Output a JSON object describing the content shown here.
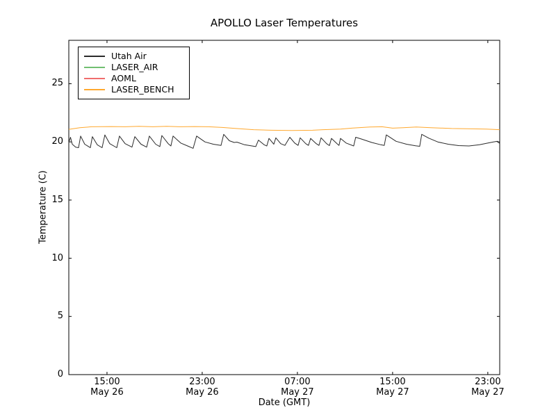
{
  "window": {
    "background": "#ffffff"
  },
  "chart_data": {
    "type": "line",
    "title": "APOLLO Laser Temperatures",
    "xlabel": "Date (GMT)",
    "ylabel": "Temperature (C)",
    "x_unit": "hours since May 26 00:00 GMT",
    "xlim": [
      11.79,
      48.0
    ],
    "ylim": [
      0,
      28.73
    ],
    "grid": false,
    "legend_position": "upper left",
    "x_ticks": [
      {
        "value": 15,
        "label": "15:00",
        "sublabel": "May 26"
      },
      {
        "value": 23,
        "label": "23:00",
        "sublabel": "May 26"
      },
      {
        "value": 31,
        "label": "07:00",
        "sublabel": "May 27"
      },
      {
        "value": 39,
        "label": "15:00",
        "sublabel": "May 27"
      },
      {
        "value": 47,
        "label": "23:00",
        "sublabel": "May 27"
      }
    ],
    "y_ticks": [
      {
        "value": 0,
        "label": "0"
      },
      {
        "value": 5,
        "label": "5"
      },
      {
        "value": 10,
        "label": "10"
      },
      {
        "value": 15,
        "label": "15"
      },
      {
        "value": 20,
        "label": "20"
      },
      {
        "value": 25,
        "label": "25"
      }
    ],
    "series": [
      {
        "name": "Utah Air",
        "color": "#2a2a2a",
        "x": [
          11.79,
          11.93,
          12.08,
          12.37,
          12.61,
          12.78,
          13.13,
          13.6,
          13.77,
          14.18,
          14.59,
          14.82,
          15.23,
          15.82,
          16.05,
          16.52,
          17.1,
          17.34,
          17.86,
          18.33,
          18.56,
          19.09,
          19.44,
          19.61,
          20.14,
          20.37,
          20.55,
          21.19,
          21.77,
          22.24,
          22.53,
          23.23,
          23.93,
          24.58,
          24.81,
          25.28,
          25.69,
          25.92,
          26.56,
          27.5,
          27.73,
          28.2,
          28.43,
          28.61,
          29.02,
          29.19,
          29.6,
          29.95,
          30.36,
          30.77,
          31.06,
          31.23,
          31.7,
          31.93,
          32.11,
          32.58,
          32.81,
          32.99,
          33.45,
          33.69,
          33.86,
          34.33,
          34.5,
          34.62,
          35.09,
          35.73,
          35.9,
          36.37,
          37.25,
          38.01,
          38.3,
          38.47,
          39.29,
          40.17,
          40.93,
          41.28,
          41.45,
          42.04,
          42.79,
          43.67,
          44.55,
          45.42,
          46.3,
          46.88,
          47.47,
          47.82,
          48.0
        ],
        "y": [
          19.95,
          20.4,
          19.8,
          19.55,
          19.5,
          20.5,
          19.8,
          19.5,
          20.45,
          19.75,
          19.5,
          20.6,
          19.85,
          19.5,
          20.5,
          19.85,
          19.55,
          20.45,
          19.8,
          19.55,
          20.5,
          19.8,
          19.6,
          20.55,
          19.85,
          19.65,
          20.5,
          19.9,
          19.65,
          19.45,
          20.5,
          20.0,
          19.8,
          19.7,
          20.65,
          20.1,
          19.95,
          19.98,
          19.75,
          19.6,
          20.15,
          19.75,
          19.65,
          20.3,
          19.8,
          20.35,
          19.85,
          19.7,
          20.4,
          19.9,
          19.7,
          20.35,
          19.85,
          19.7,
          20.3,
          19.85,
          19.7,
          20.35,
          19.85,
          19.68,
          20.3,
          19.85,
          19.7,
          20.3,
          19.9,
          19.65,
          20.4,
          20.25,
          19.95,
          19.75,
          19.7,
          20.6,
          20.05,
          19.8,
          19.67,
          19.62,
          20.65,
          20.32,
          20.0,
          19.8,
          19.68,
          19.65,
          19.75,
          19.88,
          20.0,
          20.05,
          19.85
        ]
      },
      {
        "name": "LASER_AIR",
        "color": "#71bf71",
        "x": [],
        "y": []
      },
      {
        "name": "AOML",
        "color": "#f06d6d",
        "x": [],
        "y": []
      },
      {
        "name": "LASER_BENCH",
        "color": "#ffa82e",
        "x": [
          11.79,
          12.72,
          13.72,
          15.35,
          16.52,
          17.69,
          18.85,
          20.02,
          21.19,
          22.36,
          23.53,
          24.69,
          25.86,
          27.32,
          28.78,
          30.53,
          32.28,
          33.16,
          34.62,
          35.79,
          37.07,
          38.12,
          39.0,
          39.88,
          40.99,
          42.21,
          43.96,
          45.72,
          46.88,
          48.0
        ],
        "y": [
          21.08,
          21.22,
          21.3,
          21.32,
          21.3,
          21.34,
          21.3,
          21.34,
          21.3,
          21.32,
          21.3,
          21.24,
          21.15,
          21.05,
          21.0,
          20.98,
          21.0,
          21.05,
          21.1,
          21.2,
          21.28,
          21.3,
          21.18,
          21.22,
          21.28,
          21.22,
          21.15,
          21.12,
          21.1,
          21.05
        ]
      }
    ]
  },
  "legend": {
    "items": [
      {
        "label": "Utah Air",
        "color": "#2a2a2a"
      },
      {
        "label": "LASER_AIR",
        "color": "#71bf71"
      },
      {
        "label": "AOML",
        "color": "#f06d6d"
      },
      {
        "label": "LASER_BENCH",
        "color": "#ffa82e"
      }
    ]
  },
  "colors": {
    "axes": "#000000",
    "text": "#000000",
    "background": "#ffffff"
  }
}
